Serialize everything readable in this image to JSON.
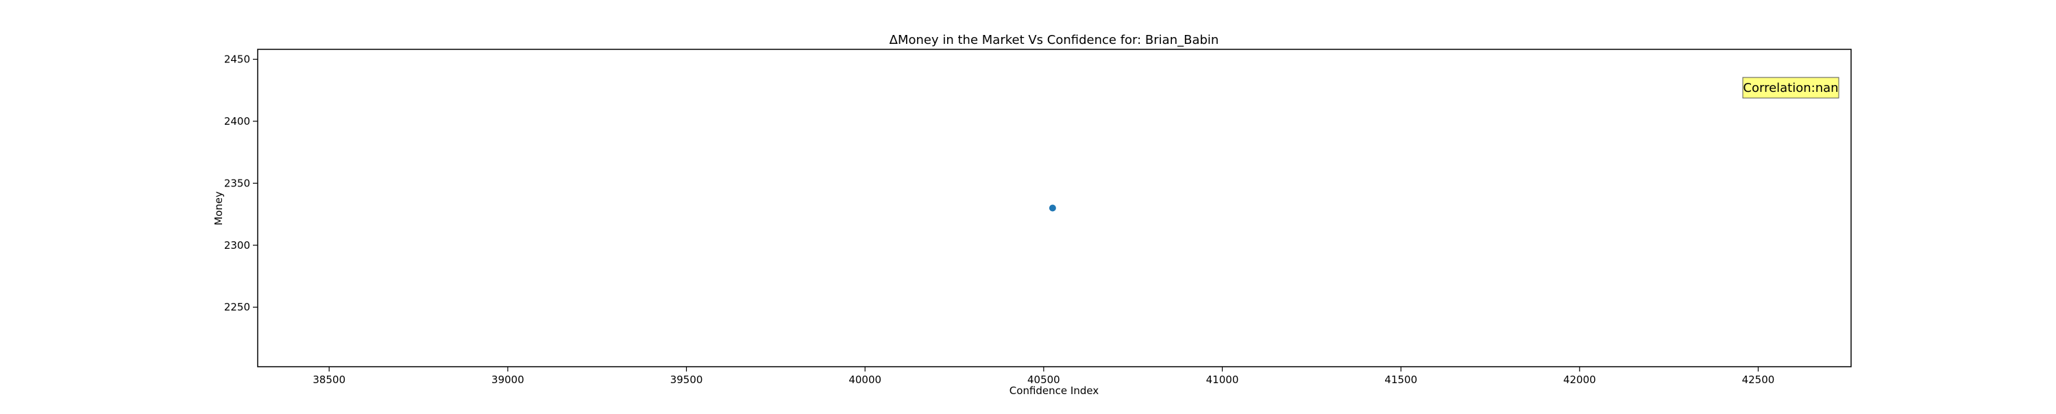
{
  "chart_data": {
    "type": "scatter",
    "title": "ΔMoney in the Market Vs Confidence for: Brian_Babin",
    "xlabel": "Confidence Index",
    "ylabel": "Money",
    "xlim": [
      38300,
      42760
    ],
    "ylim": [
      2202,
      2458
    ],
    "x_ticks": [
      38500,
      39000,
      39500,
      40000,
      40500,
      41000,
      41500,
      42000,
      42500
    ],
    "y_ticks": [
      2250,
      2300,
      2350,
      2400,
      2450
    ],
    "grid": false,
    "points": [
      {
        "x": 40525,
        "y": 2330
      }
    ],
    "point_color": "#1f77b4",
    "annotation": {
      "text": "Correlation:nan",
      "placement": "top-right",
      "background": "#ffff80"
    }
  }
}
